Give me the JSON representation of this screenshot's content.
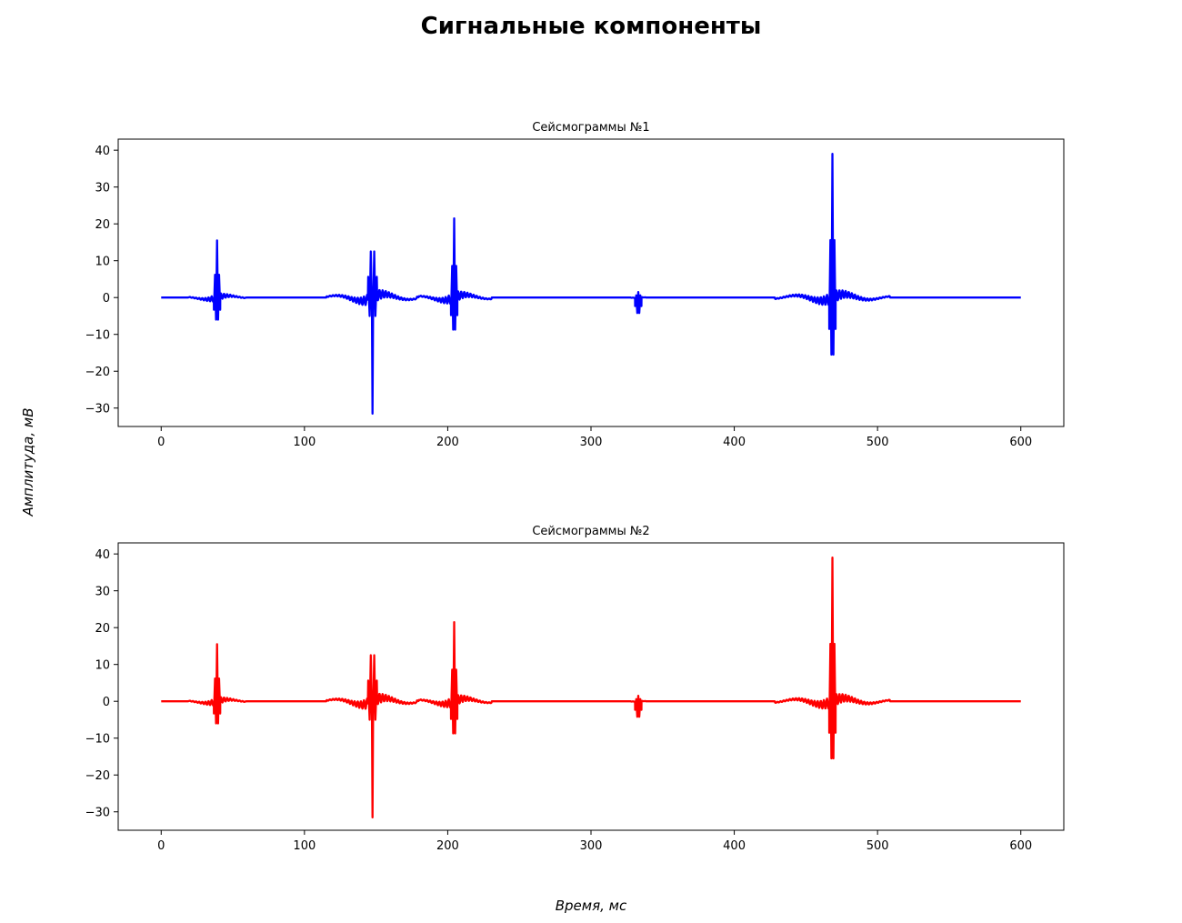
{
  "figure": {
    "suptitle": "Сигнальные компоненты",
    "ylabel": "Амплитуда, мВ",
    "xlabel": "Время, мс"
  },
  "chart_data": [
    {
      "type": "line",
      "title": "Сейсмограммы №1",
      "xlim": [
        -30,
        630
      ],
      "ylim": [
        -35,
        43
      ],
      "xticks": [
        0,
        100,
        200,
        300,
        400,
        500,
        600
      ],
      "yticks": [
        -30,
        -20,
        -10,
        0,
        10,
        20,
        30,
        40
      ],
      "grid": false,
      "series": [
        {
          "color": "#0000ff",
          "bursts": [
            {
              "t": 39,
              "amp": 15.5,
              "neg": -6,
              "env": 1.2,
              "width": 20
            },
            {
              "t": 147.5,
              "amp": 12.5,
              "neg": -31.5,
              "env": 2.0,
              "width": 32
            },
            {
              "t": 204.5,
              "amp": 21.5,
              "neg": -8.7,
              "env": 1.7,
              "width": 26
            },
            {
              "t": 333,
              "amp": 1.5,
              "neg": -4.2,
              "env": 0.3,
              "width": 5
            },
            {
              "t": 468.5,
              "amp": 39,
              "neg": -15.5,
              "env": 1.8,
              "width": 40
            }
          ],
          "x_range": [
            0,
            600
          ]
        }
      ]
    },
    {
      "type": "line",
      "title": "Сейсмограммы №2",
      "xlim": [
        -30,
        630
      ],
      "ylim": [
        -35,
        43
      ],
      "xticks": [
        0,
        100,
        200,
        300,
        400,
        500,
        600
      ],
      "yticks": [
        -30,
        -20,
        -10,
        0,
        10,
        20,
        30,
        40
      ],
      "grid": false,
      "series": [
        {
          "color": "#ff0000",
          "bursts": [
            {
              "t": 39,
              "amp": 15.5,
              "neg": -6,
              "env": 1.2,
              "width": 20
            },
            {
              "t": 147.5,
              "amp": 12.5,
              "neg": -31.5,
              "env": 2.0,
              "width": 32
            },
            {
              "t": 204.5,
              "amp": 21.5,
              "neg": -8.7,
              "env": 1.7,
              "width": 26
            },
            {
              "t": 333,
              "amp": 1.5,
              "neg": -4.2,
              "env": 0.3,
              "width": 5
            },
            {
              "t": 468.5,
              "amp": 39,
              "neg": -15.5,
              "env": 1.8,
              "width": 40
            }
          ],
          "x_range": [
            0,
            600
          ]
        }
      ]
    }
  ]
}
